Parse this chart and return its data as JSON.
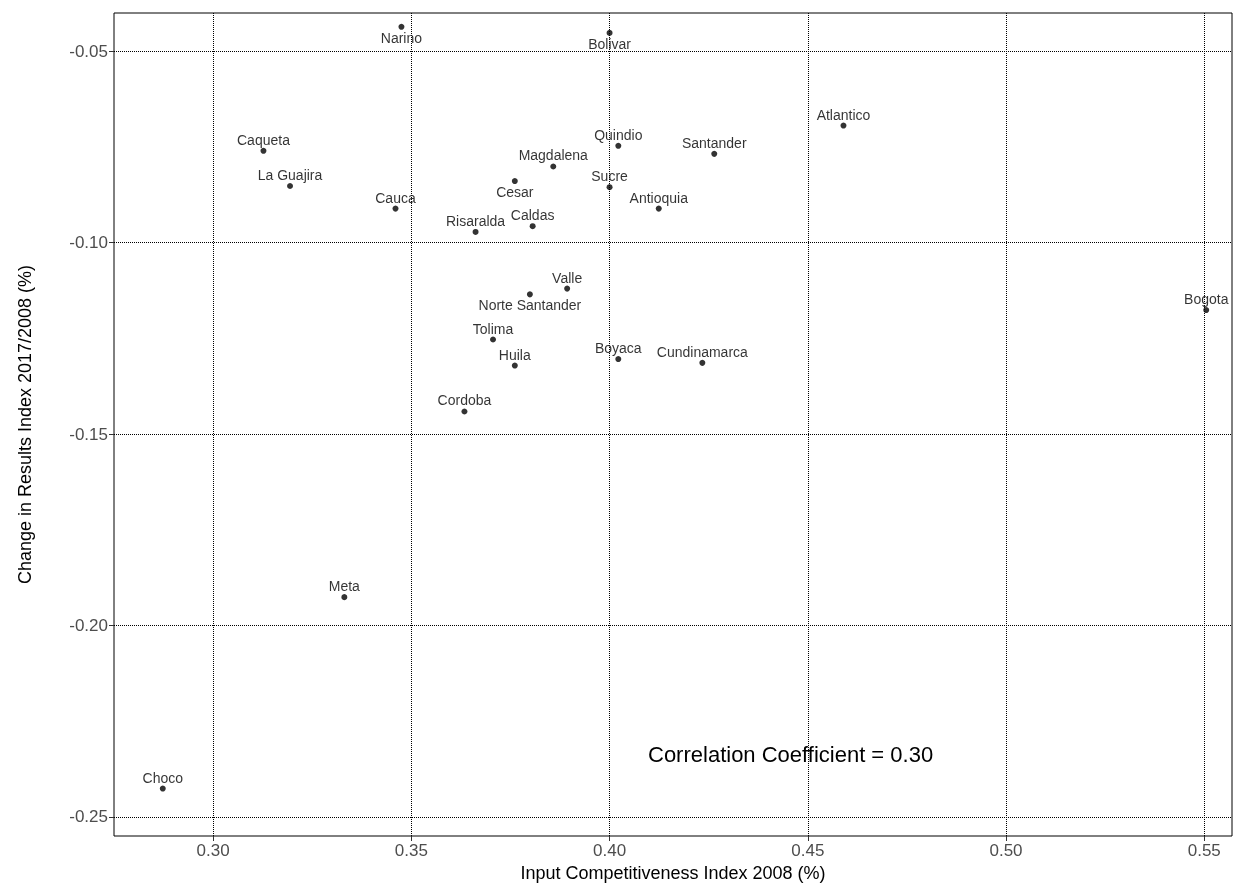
{
  "chart_data": {
    "type": "scatter",
    "xlabel": "Input Competitiveness Index 2008 (%)",
    "ylabel": "Change in Results Index 2017/2008 (%)",
    "xlim": [
      0.275,
      0.557
    ],
    "ylim": [
      -0.255,
      -0.04
    ],
    "xticks": [
      {
        "value": 0.3,
        "label": "0.30"
      },
      {
        "value": 0.35,
        "label": "0.35"
      },
      {
        "value": 0.4,
        "label": "0.40"
      },
      {
        "value": 0.45,
        "label": "0.45"
      },
      {
        "value": 0.5,
        "label": "0.50"
      },
      {
        "value": 0.55,
        "label": "0.55"
      }
    ],
    "yticks": [
      -0.25,
      {
        "value": -0.2,
        "label": "-0.20"
      },
      -0.15,
      {
        "value": -0.1,
        "label": "-0.10"
      },
      -0.05
    ],
    "grid": true,
    "marker": "circle",
    "annotations": [
      "Correlation Coefficient = 0.30"
    ],
    "series": [
      {
        "color": "#000000",
        "x": [
          0.3475,
          0.4,
          0.459,
          0.3127,
          0.4022,
          0.4264,
          0.3858,
          0.3761,
          0.3194,
          0.4,
          0.346,
          0.4124,
          0.3806,
          0.3662,
          0.3893,
          0.3799,
          0.5505,
          0.3706,
          0.4022,
          0.4234,
          0.3761,
          0.3634,
          0.3331,
          0.2873
        ],
        "values": [
          -0.0436,
          -0.0452,
          -0.0694,
          -0.076,
          -0.0747,
          -0.0768,
          -0.0801,
          -0.0839,
          -0.0852,
          -0.0855,
          -0.0911,
          -0.0911,
          -0.0957,
          -0.0972,
          -0.112,
          -0.1135,
          -0.1176,
          -0.1253,
          -0.1304,
          -0.1314,
          -0.1321,
          -0.1441,
          -0.1926,
          -0.2426
        ],
        "value_labels": [
          "Narino",
          "Bolivar",
          "Atlantico",
          "Caqueta",
          "Quindio",
          "Santander",
          "Magdalena",
          "Cesar",
          "La Guajira",
          "Sucre",
          "Cauca",
          "Antioquia",
          "Caldas",
          "Risaralda",
          "Valle",
          "Norte Santander",
          "Bogota",
          "Tolima",
          "Boyaca",
          "Cundinamarca",
          "Huila",
          "Cordoba",
          "Meta",
          "Choco"
        ]
      }
    ]
  }
}
